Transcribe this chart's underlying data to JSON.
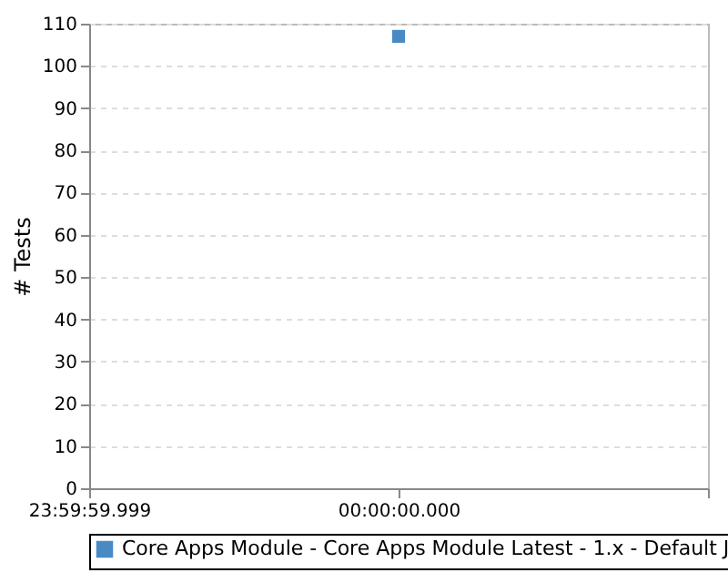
{
  "chart_data": {
    "type": "line",
    "ylabel": "# Tests",
    "categories": [
      "23:59:59.999",
      "00:00:00.000",
      null
    ],
    "series": [
      {
        "name": "Core Apps Module - Core Apps Module Latest - 1.x - Default J",
        "color": "#4a8ac4",
        "values": [
          null,
          107,
          null
        ]
      }
    ],
    "ylim": [
      0,
      110
    ],
    "yticks": [
      0,
      10,
      20,
      30,
      40,
      50,
      60,
      70,
      80,
      90,
      100,
      110
    ],
    "grid": "y",
    "legend": "bottom",
    "marker": "square"
  }
}
